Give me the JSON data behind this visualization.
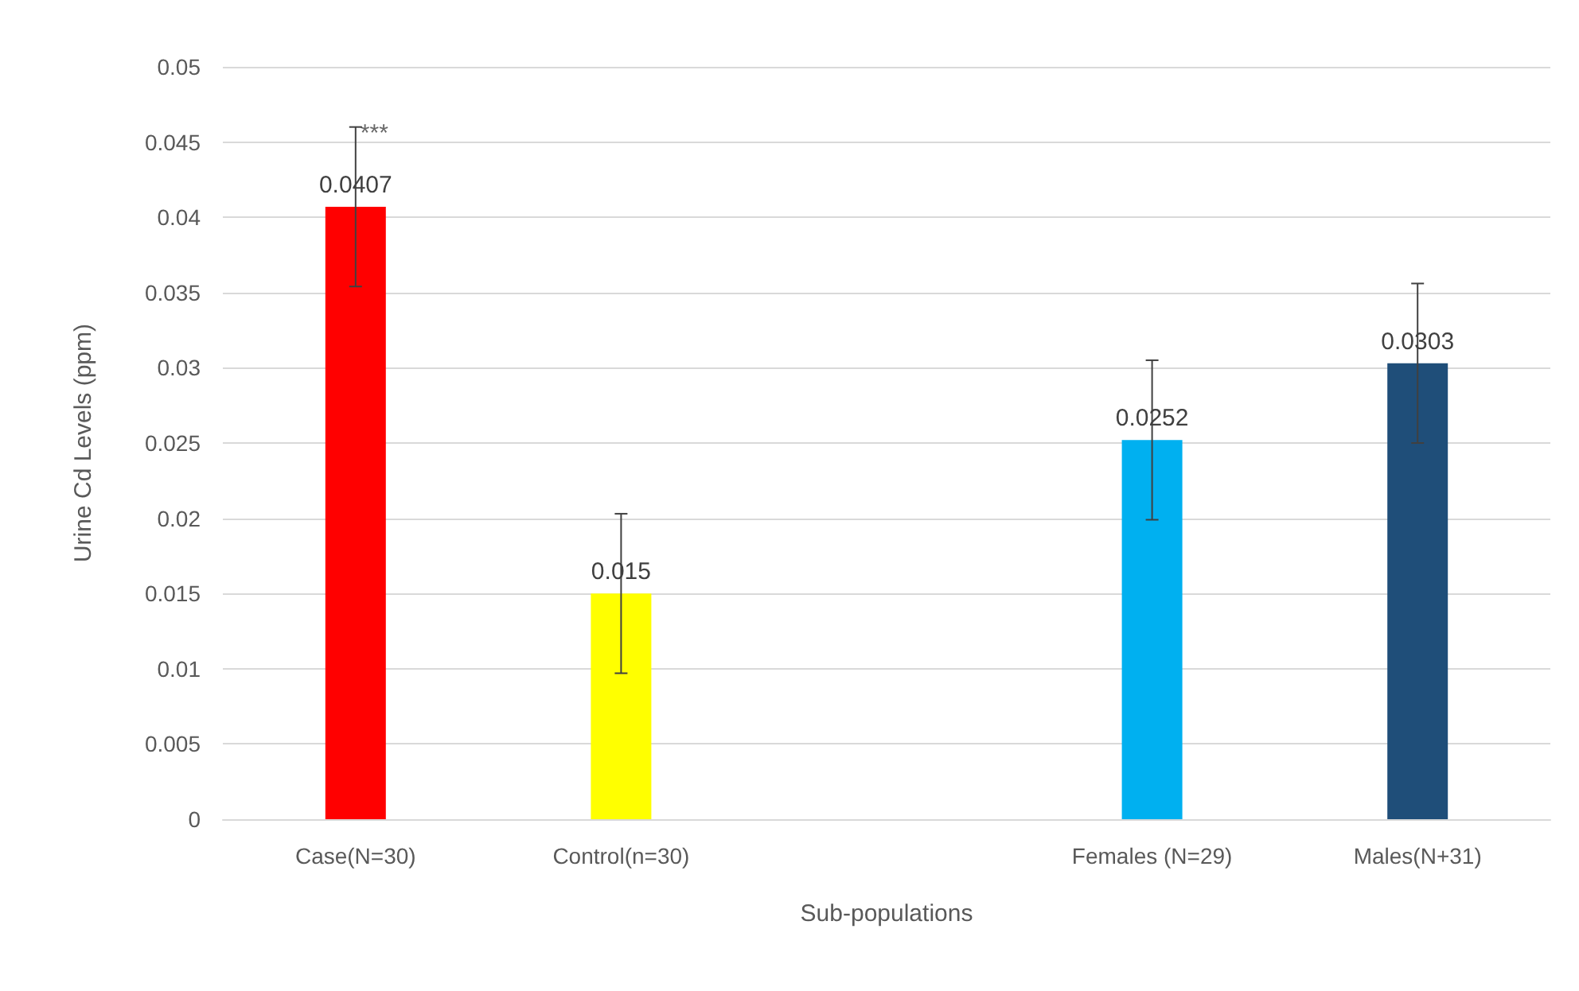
{
  "chart_data": {
    "type": "bar",
    "xlabel": "Sub-populations",
    "ylabel": "Urine Cd Levels (ppm)",
    "categories": [
      "Case(N=30)",
      "Control(n=30)",
      null,
      "Females (N=29)",
      "Males(N+31)"
    ],
    "values": [
      0.0407,
      0.015,
      null,
      0.0252,
      0.0303
    ],
    "colors": [
      "#ff0000",
      "#ffff00",
      "#000000",
      "#00b0f0",
      "#1f4e79"
    ],
    "errors": [
      0.0053,
      0.0053,
      null,
      0.0053,
      0.0053
    ],
    "ylim": [
      0,
      0.05
    ],
    "yticks": [
      0,
      0.005,
      0.01,
      0.015,
      0.02,
      0.025,
      0.03,
      0.035,
      0.04,
      0.045,
      0.05
    ],
    "grid": "y",
    "data_labels": true,
    "annotations": [
      {
        "text": "***",
        "x": "Case(N=30)",
        "y": 0.046
      }
    ]
  }
}
